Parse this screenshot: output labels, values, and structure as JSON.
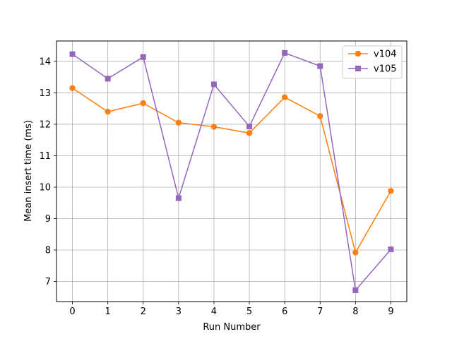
{
  "chart_data": {
    "type": "line",
    "title": "",
    "xlabel": "Run Number",
    "ylabel": "Mean insert time (ms)",
    "x": [
      0,
      1,
      2,
      3,
      4,
      5,
      6,
      7,
      8,
      9
    ],
    "xticks": [
      "0",
      "1",
      "2",
      "3",
      "4",
      "5",
      "6",
      "7",
      "8",
      "9"
    ],
    "yticks": [
      "7",
      "8",
      "9",
      "10",
      "11",
      "12",
      "13",
      "14"
    ],
    "xlim": [
      -0.45,
      9.45
    ],
    "ylim": [
      6.36,
      14.65
    ],
    "grid": true,
    "legend_position": "top-right",
    "series": [
      {
        "name": "v104",
        "color": "#ff7f0e",
        "marker": "circle",
        "values": [
          13.15,
          12.4,
          12.67,
          12.05,
          11.92,
          11.72,
          12.86,
          12.26,
          7.92,
          9.88
        ]
      },
      {
        "name": "v105",
        "color": "#9467bd",
        "marker": "square",
        "values": [
          14.23,
          13.45,
          14.14,
          9.65,
          13.27,
          11.93,
          14.27,
          13.85,
          6.72,
          8.02
        ]
      }
    ]
  }
}
